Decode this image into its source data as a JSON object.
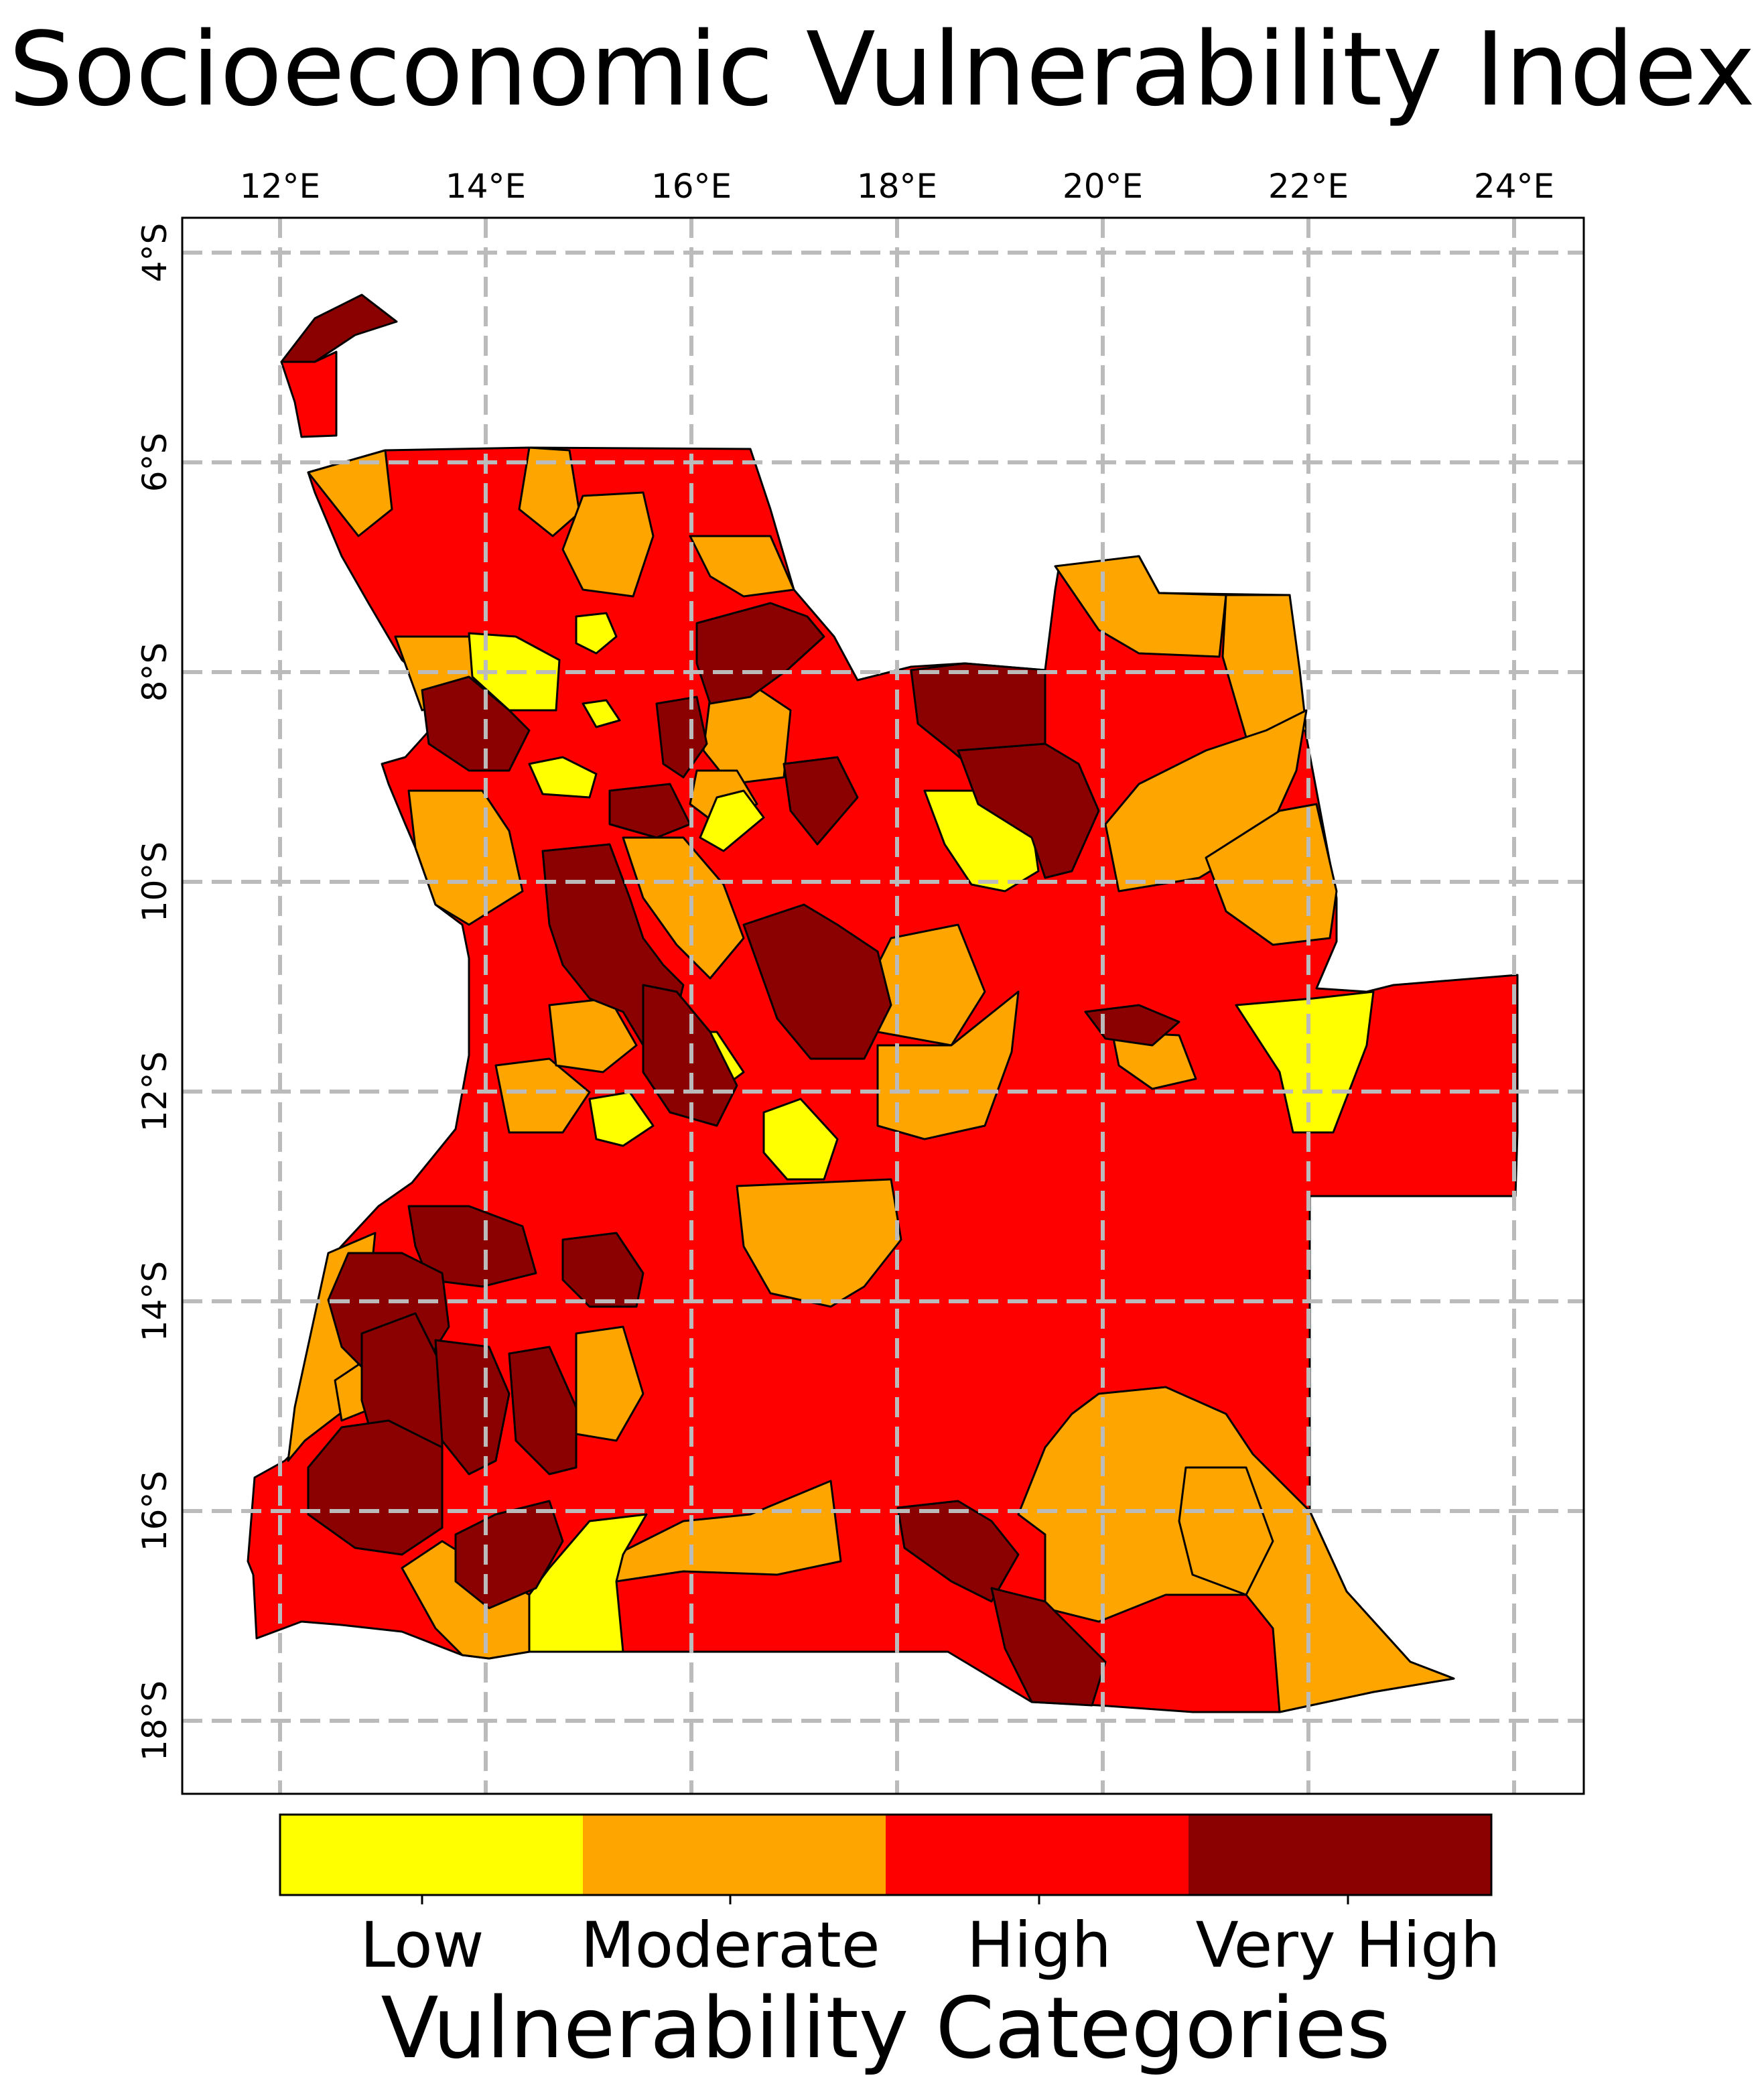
{
  "title": "Socioeconomic Vulnerability Index",
  "map": {
    "lon_ticks": [
      "12°E",
      "14°E",
      "16°E",
      "18°E",
      "20°E",
      "22°E",
      "24°E"
    ],
    "lat_ticks": [
      "4°S",
      "6°S",
      "8°S",
      "10°S",
      "12°S",
      "14°S",
      "16°S",
      "18°S"
    ],
    "gridlines": true
  },
  "legend": {
    "title": "Vulnerability Categories",
    "categories": [
      {
        "label": "Low",
        "color": "#ffff00"
      },
      {
        "label": "Moderate",
        "color": "#ffa500"
      },
      {
        "label": "High",
        "color": "#ff0000"
      },
      {
        "label": "Very High",
        "color": "#8b0000"
      }
    ]
  }
}
